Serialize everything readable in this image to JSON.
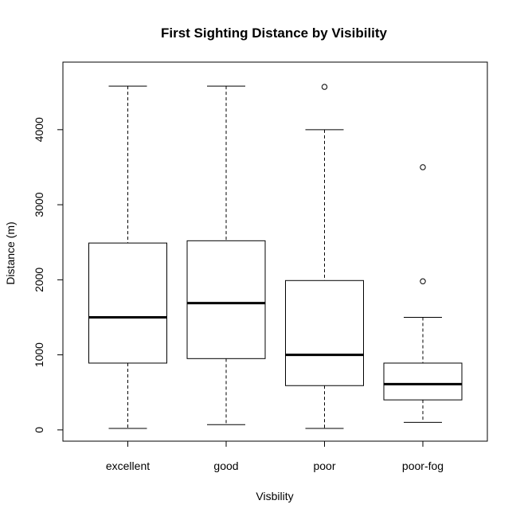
{
  "chart_data": {
    "type": "boxplot",
    "title": "First Sighting Distance by Visibility",
    "xlabel": "Visbility",
    "ylabel": "Distance (m)",
    "ylim": [
      -150,
      4900
    ],
    "yticks": [
      0,
      1000,
      2000,
      3000,
      4000
    ],
    "grid": false,
    "categories": [
      "excellent",
      "good",
      "poor",
      "poor-fog"
    ],
    "boxes": [
      {
        "category": "excellent",
        "whisker_low": 20,
        "q1": 890,
        "median": 1500,
        "q3": 2490,
        "whisker_high": 4580,
        "outliers": []
      },
      {
        "category": "good",
        "whisker_low": 70,
        "q1": 950,
        "median": 1690,
        "q3": 2520,
        "whisker_high": 4580,
        "outliers": []
      },
      {
        "category": "poor",
        "whisker_low": 20,
        "q1": 590,
        "median": 1000,
        "q3": 1990,
        "whisker_high": 4000,
        "outliers": [
          4570
        ]
      },
      {
        "category": "poor-fog",
        "whisker_low": 100,
        "q1": 400,
        "median": 610,
        "q3": 890,
        "whisker_high": 1500,
        "outliers": [
          1980,
          3500
        ]
      }
    ]
  }
}
